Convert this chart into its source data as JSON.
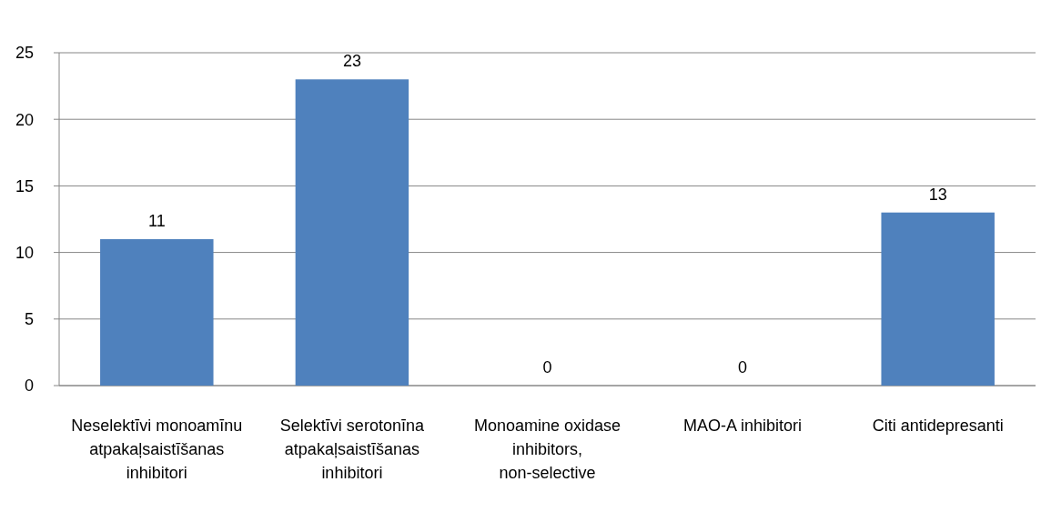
{
  "chart_data": {
    "type": "bar",
    "categories": [
      "Neselektīvi monoamīnu atpakaļsaistīšanas inhibitori",
      "Selektīvi serotonīna atpakaļsaistīšanas inhibitori",
      "Monoamine oxidase inhibitors, non-selective",
      "MAO-A inhibitori",
      "Citi antidepresanti"
    ],
    "values": [
      11,
      23,
      0,
      0,
      13
    ],
    "color": "#4f81bd",
    "ylim": [
      0,
      25
    ],
    "yticks": [
      0,
      5,
      10,
      15,
      20,
      25
    ],
    "grid": "y",
    "data_labels": true
  }
}
